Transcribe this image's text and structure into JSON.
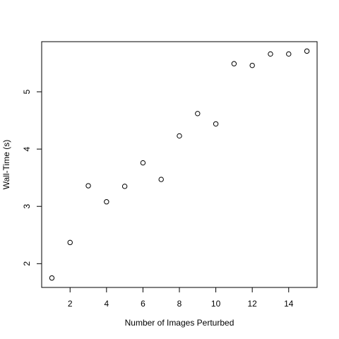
{
  "chart_data": {
    "type": "scatter",
    "title": "",
    "xlabel": "Number of Images Perturbed",
    "ylabel": "Wall-Time (s)",
    "xlim": [
      0.44,
      15.56
    ],
    "ylim": [
      1.585,
      5.875
    ],
    "xticks": [
      2,
      4,
      6,
      8,
      10,
      12,
      14
    ],
    "yticks": [
      2,
      3,
      4,
      5
    ],
    "grid": false,
    "marker": "open-circle",
    "x": [
      1,
      2,
      3,
      4,
      5,
      6,
      7,
      8,
      9,
      10,
      11,
      12,
      13,
      14,
      15
    ],
    "y": [
      1.75,
      2.37,
      3.36,
      3.08,
      3.35,
      3.76,
      3.47,
      4.23,
      4.62,
      4.44,
      5.49,
      5.46,
      5.66,
      5.66,
      5.71
    ]
  }
}
